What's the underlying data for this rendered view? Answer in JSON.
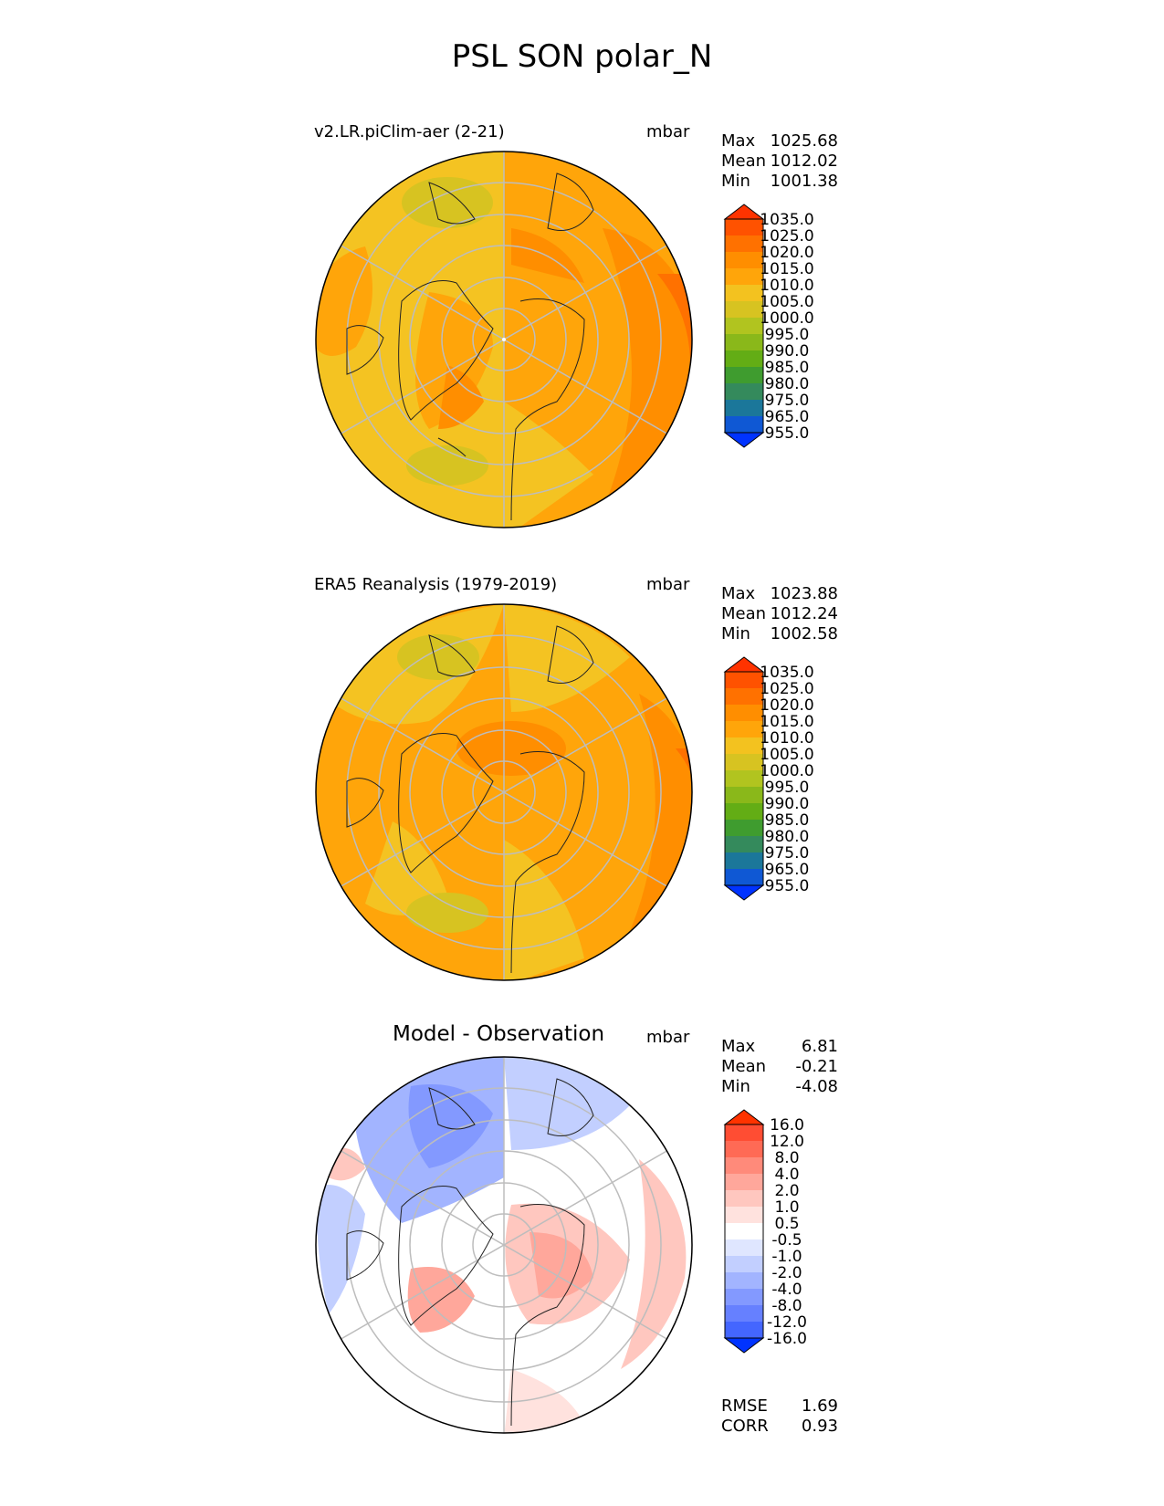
{
  "figure": {
    "title": "PSL SON polar_N",
    "units": "mbar"
  },
  "panels": [
    {
      "label": "v2.LR.piClim-aer (2-21)",
      "units": "mbar",
      "stats": {
        "max_label": "Max",
        "max": "1025.68",
        "mean_label": "Mean",
        "mean": "1012.02",
        "min_label": "Min",
        "min": "1001.38"
      },
      "colorbar": {
        "labels": [
          "1035.0",
          "1025.0",
          "1020.0",
          "1015.0",
          "1010.0",
          "1005.0",
          "1000.0",
          "995.0",
          "990.0",
          "985.0",
          "980.0",
          "975.0",
          "965.0",
          "955.0"
        ],
        "colors": [
          "#ff3300",
          "#ff5200",
          "#ff7100",
          "#ff8e00",
          "#ffa50a",
          "#f3c21f",
          "#d7c321",
          "#b1c41f",
          "#8ab81a",
          "#63ad15",
          "#3f9c2f",
          "#348a5c",
          "#1b779a",
          "#0f58d4",
          "#0033ff"
        ]
      }
    },
    {
      "label": "ERA5 Reanalysis (1979-2019)",
      "units": "mbar",
      "stats": {
        "max_label": "Max",
        "max": "1023.88",
        "mean_label": "Mean",
        "mean": "1012.24",
        "min_label": "Min",
        "min": "1002.58"
      },
      "colorbar": {
        "labels": [
          "1035.0",
          "1025.0",
          "1020.0",
          "1015.0",
          "1010.0",
          "1005.0",
          "1000.0",
          "995.0",
          "990.0",
          "985.0",
          "980.0",
          "975.0",
          "965.0",
          "955.0"
        ],
        "colors": [
          "#ff3300",
          "#ff5200",
          "#ff7100",
          "#ff8e00",
          "#ffa50a",
          "#f3c21f",
          "#d7c321",
          "#b1c41f",
          "#8ab81a",
          "#63ad15",
          "#3f9c2f",
          "#348a5c",
          "#1b779a",
          "#0f58d4",
          "#0033ff"
        ]
      }
    },
    {
      "label": "Model - Observation",
      "units": "mbar",
      "stats": {
        "max_label": "Max",
        "max": "6.81",
        "mean_label": "Mean",
        "mean": "-0.21",
        "min_label": "Min",
        "min": "-4.08"
      },
      "colorbar": {
        "labels": [
          "16.0",
          "12.0",
          "8.0",
          "4.0",
          "2.0",
          "1.0",
          "0.5",
          "-0.5",
          "-1.0",
          "-2.0",
          "-4.0",
          "-8.0",
          "-12.0",
          "-16.0"
        ],
        "colors": [
          "#ff3300",
          "#ff4d33",
          "#ff6a55",
          "#ff8a7a",
          "#ffa79b",
          "#ffc7bf",
          "#ffe2de",
          "#ffffff",
          "#dfe6ff",
          "#c2cfff",
          "#a2b4ff",
          "#8399ff",
          "#6680ff",
          "#4466ff",
          "#0033ff"
        ]
      },
      "metrics": {
        "rmse_label": "RMSE",
        "rmse": "1.69",
        "corr_label": "CORR",
        "corr": "0.93"
      }
    }
  ]
}
